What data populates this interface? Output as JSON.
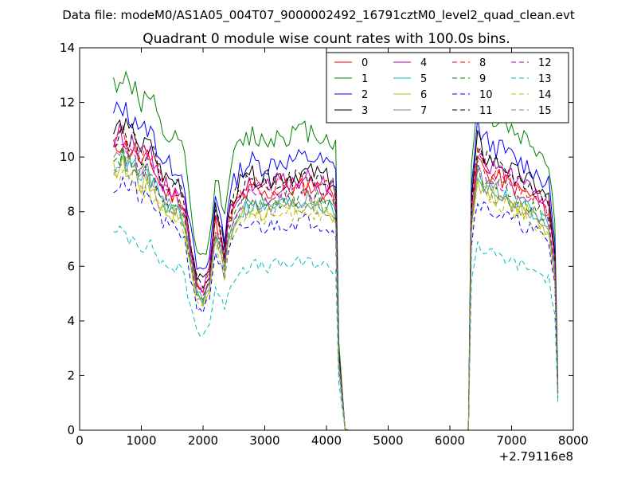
{
  "chart_data": {
    "type": "line",
    "suptitle": "Data file: modeM0/AS1A05_004T07_9000002492_16791cztM0_level2_quad_clean.evt",
    "title": "Quadrant 0 module wise count rates with 100.0s bins.",
    "xlabel": "",
    "ylabel": "",
    "xlim": [
      0,
      8000
    ],
    "ylim": [
      0,
      14
    ],
    "x_ticks": [
      "0",
      "1000",
      "2000",
      "3000",
      "4000",
      "5000",
      "6000",
      "7000",
      "8000"
    ],
    "y_ticks": [
      "0",
      "2",
      "4",
      "6",
      "8",
      "10",
      "12",
      "14"
    ],
    "x_offset_label": "+2.79116e8",
    "legend_position": "top-right",
    "grid": false,
    "x_segments": [
      {
        "start": 550,
        "end": 4150
      },
      {
        "start": 4150,
        "end": 6300,
        "step": 100
      },
      {
        "start": 6350,
        "end": 7750
      }
    ],
    "envelope": {
      "seg1": [
        [
          550,
          10.3
        ],
        [
          700,
          10.6
        ],
        [
          800,
          10.2
        ],
        [
          900,
          10.3
        ],
        [
          1000,
          9.7
        ],
        [
          1100,
          9.9
        ],
        [
          1200,
          9.6
        ],
        [
          1300,
          9.0
        ],
        [
          1400,
          8.7
        ],
        [
          1500,
          8.6
        ],
        [
          1600,
          8.6
        ],
        [
          1700,
          8.1
        ],
        [
          1800,
          6.5
        ],
        [
          1900,
          5.3
        ],
        [
          2000,
          5.1
        ],
        [
          2100,
          5.6
        ],
        [
          2200,
          7.6
        ],
        [
          2300,
          6.9
        ],
        [
          2350,
          6.2
        ],
        [
          2400,
          7.4
        ],
        [
          2500,
          8.1
        ],
        [
          2600,
          8.5
        ],
        [
          2800,
          8.8
        ],
        [
          3000,
          8.6
        ],
        [
          3200,
          8.8
        ],
        [
          3400,
          8.8
        ],
        [
          3600,
          8.9
        ],
        [
          3800,
          8.9
        ],
        [
          4000,
          8.7
        ],
        [
          4100,
          8.6
        ],
        [
          4150,
          8.4
        ]
      ],
      "seg3": [
        [
          6350,
          8.0
        ],
        [
          6450,
          10.0
        ],
        [
          6550,
          9.5
        ],
        [
          6700,
          9.3
        ],
        [
          6900,
          9.1
        ],
        [
          7100,
          8.8
        ],
        [
          7300,
          8.6
        ],
        [
          7500,
          8.2
        ],
        [
          7600,
          8.0
        ],
        [
          7700,
          6.2
        ],
        [
          7750,
          1.4
        ]
      ]
    },
    "series": [
      {
        "name": "0",
        "color": "#ff0000",
        "dashed": false,
        "scale": 1.0,
        "seed": 11
      },
      {
        "name": "1",
        "color": "#008000",
        "dashed": false,
        "scale": 1.23,
        "seed": 12
      },
      {
        "name": "2",
        "color": "#0000ff",
        "dashed": false,
        "scale": 1.12,
        "seed": 13
      },
      {
        "name": "3",
        "color": "#000000",
        "dashed": false,
        "scale": 1.06,
        "seed": 14
      },
      {
        "name": "4",
        "color": "#bf00bf",
        "dashed": false,
        "scale": 1.03,
        "seed": 15
      },
      {
        "name": "5",
        "color": "#00bfbf",
        "dashed": false,
        "scale": 0.94,
        "seed": 16
      },
      {
        "name": "6",
        "color": "#bfbf00",
        "dashed": false,
        "scale": 0.92,
        "seed": 17
      },
      {
        "name": "7",
        "color": "#808080",
        "dashed": false,
        "scale": 0.95,
        "seed": 18
      },
      {
        "name": "8",
        "color": "#ff0000",
        "dashed": true,
        "scale": 1.02,
        "seed": 19
      },
      {
        "name": "9",
        "color": "#008000",
        "dashed": true,
        "scale": 0.96,
        "seed": 20
      },
      {
        "name": "10",
        "color": "#0000ff",
        "dashed": true,
        "scale": 0.86,
        "seed": 21
      },
      {
        "name": "11",
        "color": "#000000",
        "dashed": true,
        "scale": 1.04,
        "seed": 22
      },
      {
        "name": "12",
        "color": "#bf00bf",
        "dashed": true,
        "scale": 0.98,
        "seed": 23
      },
      {
        "name": "13",
        "color": "#00bfbf",
        "dashed": true,
        "scale": 0.69,
        "seed": 24
      },
      {
        "name": "14",
        "color": "#bfbf00",
        "dashed": true,
        "scale": 0.9,
        "seed": 25
      },
      {
        "name": "15",
        "color": "#808080",
        "dashed": true,
        "scale": 0.93,
        "seed": 26
      }
    ]
  }
}
